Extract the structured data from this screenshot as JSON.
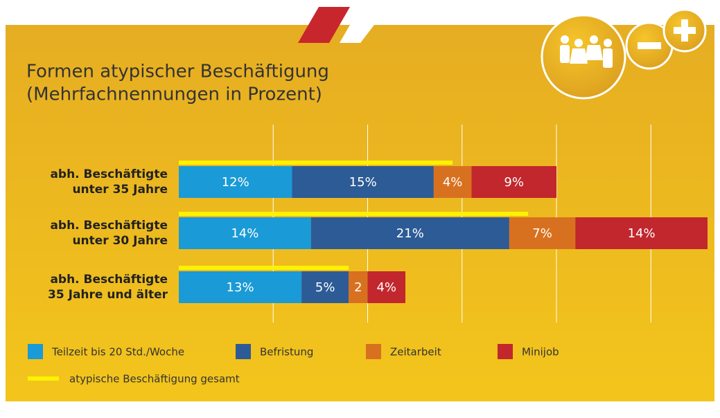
{
  "chart_data": {
    "type": "stacked-bar-horizontal",
    "title": "Formen atypischer Beschäftigung",
    "subtitle": "(Mehrfachnennungen in Prozent)",
    "categories": [
      "abh. Beschäftigte\nunter 35 Jahre",
      "abh. Beschäftigte\nunter 30 Jahre",
      "abh. Beschäftigte\n35 Jahre und älter"
    ],
    "series": [
      {
        "name": "Teilzeit bis 20 Std./Woche",
        "color": "#1a9ad6",
        "values": [
          12,
          14,
          13
        ],
        "value_labels": [
          "12%",
          "14%",
          "13%"
        ]
      },
      {
        "name": "Befristung",
        "color": "#2d5b95",
        "values": [
          15,
          21,
          5
        ],
        "value_labels": [
          "15%",
          "21%",
          "5%"
        ]
      },
      {
        "name": "Zeitarbeit",
        "color": "#d8711f",
        "values": [
          4,
          7,
          2
        ],
        "value_labels": [
          "4%",
          "7%",
          "2"
        ]
      },
      {
        "name": "Minijob",
        "color": "#c1272d",
        "values": [
          9,
          14,
          4
        ],
        "value_labels": [
          "9%",
          "14%",
          "4%"
        ]
      }
    ],
    "total": {
      "name": "atypische Beschäftigung gesamt",
      "color": "#fff200",
      "values": [
        29,
        37,
        18
      ]
    },
    "xlim": [
      0,
      56
    ],
    "xticks": [
      10,
      20,
      30,
      40,
      50
    ],
    "grid": true
  }
}
